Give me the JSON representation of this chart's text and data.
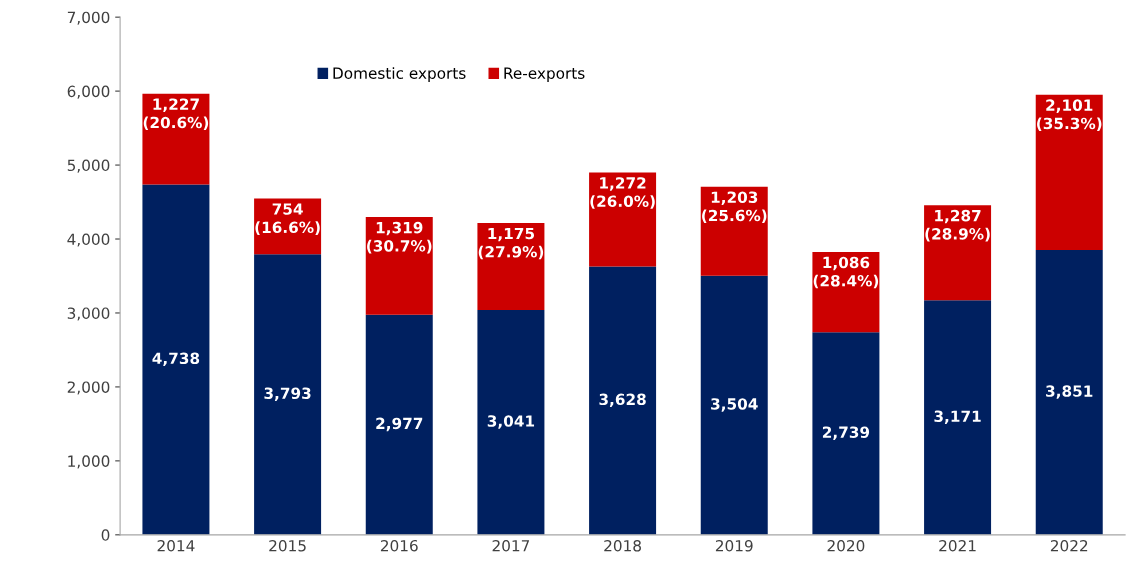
{
  "chart_data": {
    "type": "bar",
    "stacked": true,
    "categories": [
      "2014",
      "2015",
      "2016",
      "2017",
      "2018",
      "2019",
      "2020",
      "2021",
      "2022"
    ],
    "series": [
      {
        "name": "Domestic exports",
        "color": "#002060",
        "values": [
          4738,
          3793,
          2977,
          3041,
          3628,
          3504,
          2739,
          3171,
          3851
        ],
        "value_labels": [
          "4,738",
          "3,793",
          "2,977",
          "3,041",
          "3,628",
          "3,504",
          "2,739",
          "3,171",
          "3,851"
        ]
      },
      {
        "name": "Re-exports",
        "color": "#cc0000",
        "values": [
          1227,
          754,
          1319,
          1175,
          1272,
          1203,
          1086,
          1287,
          2101
        ],
        "value_labels": [
          "1,227\n(20.6%)",
          "754\n(16.6%)",
          "1,319\n(30.7%)",
          "1,175\n(27.9%)",
          "1,272\n(26.0%)",
          "1,203\n(25.6%)",
          "1,086\n(28.4%)",
          "1,287\n(28.9%)",
          "2,101\n(35.3%)"
        ]
      }
    ],
    "ylim": [
      0,
      7000
    ],
    "yticks": [
      0,
      {
        "value": 1000,
        "label": "1,000"
      },
      {
        "value": 2000,
        "label": "2,000"
      },
      {
        "value": 3000,
        "label": "3,000"
      },
      {
        "value": 4000,
        "label": "4,000"
      },
      {
        "value": 5000,
        "label": "5,000"
      },
      {
        "value": 6000,
        "label": "6,000"
      },
      {
        "value": 7000,
        "label": "7,000"
      }
    ],
    "grid": false,
    "legend": "top"
  }
}
